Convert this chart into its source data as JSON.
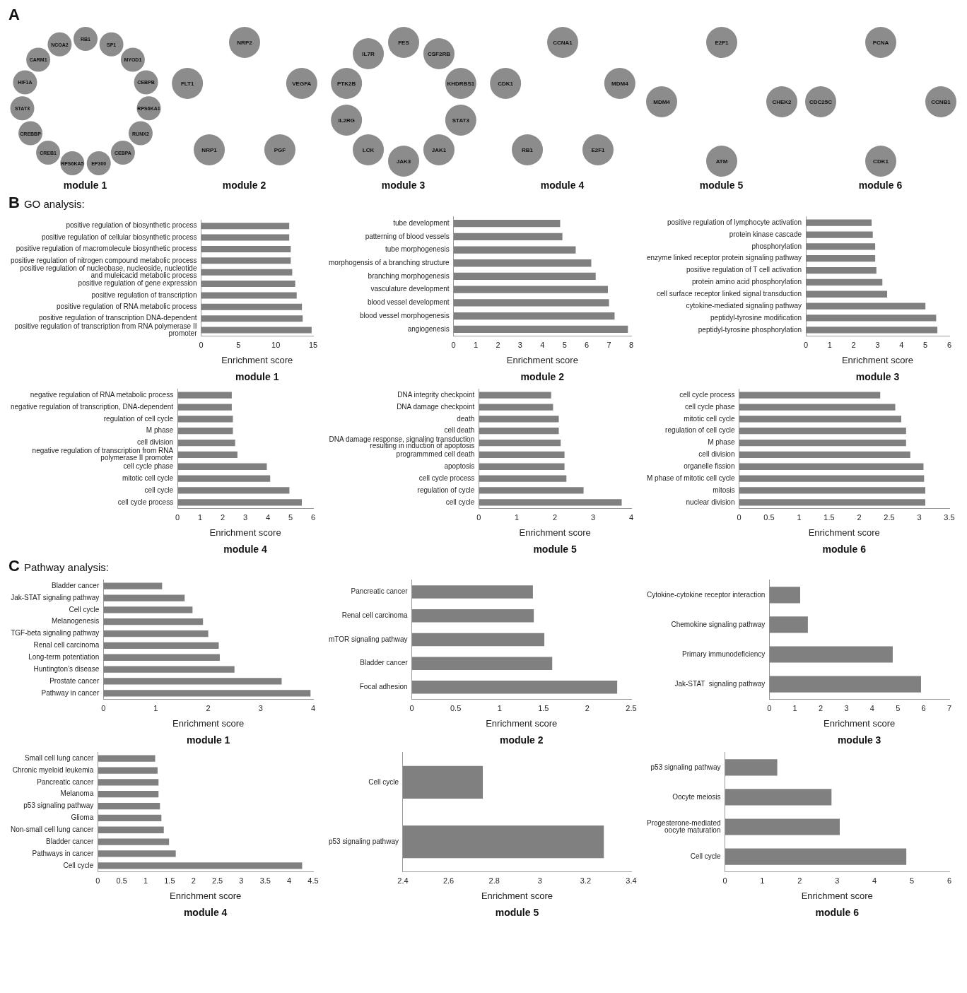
{
  "chart_data": [
    {
      "type": "other",
      "annotations": [
        "A"
      ],
      "title": "module 1",
      "categories": [
        "RB1",
        "SP1",
        "MYOD1",
        "CEBPB",
        "RPS6KA1",
        "RUNX2",
        "CEBPA",
        "EP300",
        "RPS6KA5",
        "CREB1",
        "CREBBP",
        "STAT3",
        "HIF1A",
        "CARM1",
        "NCOA2"
      ]
    },
    {
      "type": "other",
      "title": "module 2",
      "categories": [
        "NRP2",
        "VEGFA",
        "PGF",
        "NRP1",
        "FLT1"
      ]
    },
    {
      "type": "other",
      "title": "module 3",
      "categories": [
        "FES",
        "CSF2RB",
        "KHDRBS1",
        "STAT3",
        "JAK1",
        "JAK3",
        "LCK",
        "IL2RG",
        "PTK2B",
        "IL7R"
      ]
    },
    {
      "type": "other",
      "title": "module 4",
      "categories": [
        "CCNA1",
        "MDM4",
        "E2F1",
        "RB1",
        "CDK1"
      ]
    },
    {
      "type": "other",
      "title": "module 5",
      "categories": [
        "E2F1",
        "CHEK2",
        "ATM",
        "MDM4"
      ]
    },
    {
      "type": "other",
      "title": "module 6",
      "categories": [
        "PCNA",
        "CCNB1",
        "CDK1",
        "CDC25C"
      ]
    },
    {
      "type": "bar",
      "orientation": "horizontal",
      "annotations": [
        "B",
        "GO analysis:"
      ],
      "title": "module 1",
      "xlabel": "Enrichment score",
      "color": "#808080",
      "categories": [
        "positive regulation of biosynthetic process",
        "positive regulation of cellular biosynthetic process",
        "positive regulation of macromolecule biosynthetic process",
        "positive regulation of nitrogen compound metabolic process",
        "positive regulation of nucleobase, nucleoside, nucleotide\nand muleicacid metabolic process",
        "positive regulation of gene expression",
        "positive regulation of transcription",
        "positive regulation of RNA metabolic process",
        "positive regulation of transcription DNA-dependent",
        "positive regulation of transcription from RNA polymerase II\npromoter"
      ],
      "values": [
        11.8,
        11.8,
        12,
        12,
        12.2,
        12.6,
        12.8,
        13.5,
        13.6,
        14.8
      ],
      "xlim": [
        0,
        15
      ],
      "xticks": [
        0,
        5,
        10,
        15
      ]
    },
    {
      "type": "bar",
      "orientation": "horizontal",
      "title": "module 2",
      "xlabel": "Enrichment score",
      "color": "#808080",
      "categories": [
        "tube development",
        "patterning of blood vessels",
        "tube morphogenesis",
        "morphogensis of a branching structure",
        "branching morphogenesis",
        "vasculature development",
        "blood vessel development",
        "blood vessel morphogenesis",
        "angiogenesis"
      ],
      "values": [
        4.8,
        4.9,
        5.5,
        6.2,
        6.4,
        6.95,
        7,
        7.25,
        7.85
      ],
      "xlim": [
        0,
        8
      ],
      "xticks": [
        0,
        1,
        2,
        3,
        4,
        5,
        6,
        7,
        8
      ]
    },
    {
      "type": "bar",
      "orientation": "horizontal",
      "title": "module 3",
      "xlabel": "Enrichment score",
      "color": "#808080",
      "categories": [
        "positive regulation of lymphocyte activation",
        "protein kinase cascade",
        "phosphorylation",
        "enzyme linked receptor protein signaling pathway",
        "positive regulation of T cell activation",
        "protein amino acid phosphorylation",
        "cell surface receptor linked signal transduction",
        "cytokine-mediated signaling pathway",
        "peptidyl-tyrosine modification",
        "peptidyl-tyrosine phosphorylation"
      ],
      "values": [
        2.75,
        2.8,
        2.9,
        2.9,
        2.95,
        3.2,
        3.4,
        5,
        5.45,
        5.5
      ],
      "xlim": [
        0,
        6
      ],
      "xticks": [
        0,
        1,
        2,
        3,
        4,
        5,
        6
      ]
    },
    {
      "type": "bar",
      "orientation": "horizontal",
      "title": "module 4",
      "xlabel": "Enrichment score",
      "color": "#808080",
      "categories": [
        "negative regulation of RNA metabolic process",
        "negative regulation of transcription, DNA-dependent",
        "regulation of cell cycle",
        "M phase",
        "cell division",
        "negative regulation of transcription from RNA\npolymerase II promoter",
        "cell cycle phase",
        "mitotic cell cycle",
        "cell cycle",
        "cell cycle process"
      ],
      "values": [
        2.4,
        2.4,
        2.45,
        2.45,
        2.55,
        2.65,
        3.95,
        4.1,
        4.95,
        5.5
      ],
      "xlim": [
        0,
        6
      ],
      "xticks": [
        0,
        1,
        2,
        3,
        4,
        5,
        6
      ]
    },
    {
      "type": "bar",
      "orientation": "horizontal",
      "title": "module 5",
      "xlabel": "Enrichment score",
      "color": "#808080",
      "categories": [
        "DNA integrity checkpoint",
        "DNA damage checkpoint",
        "death",
        "cell death",
        "DNA damage response, signaling transduction\nresulting in induction of apoptosis",
        "programmmed cell death",
        "apoptosis",
        "cell cycle process",
        "regulation of cycle",
        "cell cycle"
      ],
      "values": [
        1.9,
        1.95,
        2.1,
        2.1,
        2.15,
        2.25,
        2.25,
        2.3,
        2.75,
        3.75
      ],
      "xlim": [
        0,
        4
      ],
      "xticks": [
        0,
        1,
        2,
        3,
        4
      ]
    },
    {
      "type": "bar",
      "orientation": "horizontal",
      "title": "module 6",
      "xlabel": "Enrichment score",
      "color": "#808080",
      "categories": [
        "cell cycle process",
        "cell cycle phase",
        "mitotic cell cycle",
        "regulation of cell cycle",
        "M phase",
        "cell division",
        "organelle fission",
        "M phase of mitotic cell cycle",
        "mitosis",
        "nuclear division"
      ],
      "values": [
        2.35,
        2.6,
        2.7,
        2.78,
        2.78,
        2.85,
        3.07,
        3.08,
        3.1,
        3.1
      ],
      "xlim": [
        0,
        3.5
      ],
      "xticks": [
        0,
        0.5,
        1,
        1.5,
        2,
        2.5,
        3,
        3.5
      ]
    },
    {
      "type": "bar",
      "orientation": "horizontal",
      "annotations": [
        "C",
        "Pathway analysis:"
      ],
      "title": "module 1",
      "xlabel": "Enrichment score",
      "color": "#808080",
      "categories": [
        "Bladder cancer",
        "Jak-STAT signaling pathway",
        "Cell cycle",
        "Melanogenesis",
        "TGF-beta signaling pathway",
        "Renal cell carcinoma",
        "Long-term potentiation",
        "Huntington’s disease",
        "Prostate cancer",
        "Pathway in cancer"
      ],
      "values": [
        1.12,
        1.55,
        1.7,
        1.9,
        2,
        2.2,
        2.22,
        2.5,
        3.4,
        3.95
      ],
      "xlim": [
        0,
        4
      ],
      "xticks": [
        0,
        1,
        2,
        3,
        4
      ]
    },
    {
      "type": "bar",
      "orientation": "horizontal",
      "title": "module 2",
      "xlabel": "Enrichment score",
      "color": "#808080",
      "categories": [
        "Pancreatic cancer",
        "Renal cell carcinoma",
        "mTOR signaling pathway",
        "Bladder cancer",
        "Focal adhesion"
      ],
      "values": [
        1.38,
        1.39,
        1.51,
        1.6,
        2.34
      ],
      "xlim": [
        0,
        2.5
      ],
      "xticks": [
        0,
        0.5,
        1,
        1.5,
        2,
        2.5
      ]
    },
    {
      "type": "bar",
      "orientation": "horizontal",
      "title": "module 3",
      "xlabel": "Enrichment score",
      "color": "#808080",
      "categories": [
        "Cytokine-cytokine receptor interaction",
        "Chemokine signaling pathway",
        "Primary immunodeficiency",
        "Jak-STAT  signaling pathway"
      ],
      "values": [
        1.2,
        1.5,
        4.8,
        5.9
      ],
      "xlim": [
        0,
        7
      ],
      "xticks": [
        0,
        1,
        2,
        3,
        4,
        5,
        6,
        7
      ]
    },
    {
      "type": "bar",
      "orientation": "horizontal",
      "title": "module 4",
      "xlabel": "Enrichment score",
      "color": "#808080",
      "categories": [
        "Small cell lung cancer",
        "Chronic myeloid leukemia",
        "Pancreatic cancer",
        "Melanoma",
        "p53 signaling pathway",
        "Glioma",
        "Non-small cell lung cancer",
        "Bladder cancer",
        "Pathways in cancer",
        "Cell cycle"
      ],
      "values": [
        1.2,
        1.25,
        1.27,
        1.27,
        1.3,
        1.33,
        1.38,
        1.49,
        1.63,
        4.27
      ],
      "xlim": [
        0,
        4.5
      ],
      "xticks": [
        0,
        0.5,
        1,
        1.5,
        2,
        2.5,
        3,
        3.5,
        4,
        4.5
      ]
    },
    {
      "type": "bar",
      "orientation": "horizontal",
      "title": "module 5",
      "xlabel": "Enrichment score",
      "color": "#808080",
      "categories": [
        "Cell cycle",
        "p53 signaling pathway"
      ],
      "values": [
        2.75,
        3.28
      ],
      "xlim": [
        2.4,
        3.4
      ],
      "xticks": [
        2.4,
        2.6,
        2.8,
        3,
        3.2,
        3.4
      ]
    },
    {
      "type": "bar",
      "orientation": "horizontal",
      "title": "module 6",
      "xlabel": "Enrichment score",
      "color": "#808080",
      "categories": [
        "p53 signaling pathway",
        "Oocyte meiosis",
        "Progesterone-mediated\noocyte maturation",
        "Cell cycle"
      ],
      "values": [
        1.4,
        2.85,
        3.07,
        4.85
      ],
      "xlim": [
        0,
        6
      ],
      "xticks": [
        0,
        1,
        2,
        3,
        4,
        5,
        6
      ]
    }
  ]
}
